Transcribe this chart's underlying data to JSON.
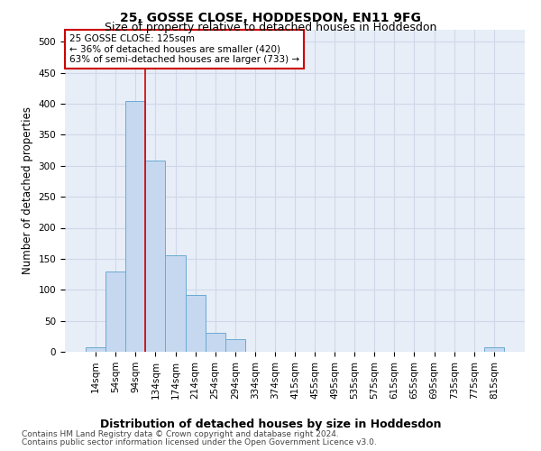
{
  "title": "25, GOSSE CLOSE, HODDESDON, EN11 9FG",
  "subtitle": "Size of property relative to detached houses in Hoddesdon",
  "xlabel": "Distribution of detached houses by size in Hoddesdon",
  "ylabel": "Number of detached properties",
  "footer_line1": "Contains HM Land Registry data © Crown copyright and database right 2024.",
  "footer_line2": "Contains public sector information licensed under the Open Government Licence v3.0.",
  "bar_labels": [
    "14sqm",
    "54sqm",
    "94sqm",
    "134sqm",
    "174sqm",
    "214sqm",
    "254sqm",
    "294sqm",
    "334sqm",
    "374sqm",
    "415sqm",
    "455sqm",
    "495sqm",
    "535sqm",
    "575sqm",
    "615sqm",
    "655sqm",
    "695sqm",
    "735sqm",
    "775sqm",
    "815sqm"
  ],
  "bar_values": [
    7,
    130,
    405,
    308,
    155,
    92,
    30,
    20,
    0,
    0,
    0,
    0,
    0,
    0,
    0,
    0,
    0,
    0,
    0,
    0,
    7
  ],
  "bar_color": "#c5d8f0",
  "bar_edge_color": "#6aaad4",
  "vline_x": 2.5,
  "vline_color": "#cc0000",
  "annotation_text": "25 GOSSE CLOSE: 125sqm\n← 36% of detached houses are smaller (420)\n63% of semi-detached houses are larger (733) →",
  "annotation_box_color": "white",
  "annotation_box_edge_color": "#cc0000",
  "ylim": [
    0,
    520
  ],
  "yticks": [
    0,
    50,
    100,
    150,
    200,
    250,
    300,
    350,
    400,
    450,
    500
  ],
  "bg_color": "#e8eef8",
  "grid_color": "#d0d8e8",
  "title_fontsize": 10,
  "subtitle_fontsize": 9,
  "axis_label_fontsize": 8.5,
  "tick_fontsize": 7.5,
  "annotation_fontsize": 7.5,
  "footer_fontsize": 6.5
}
